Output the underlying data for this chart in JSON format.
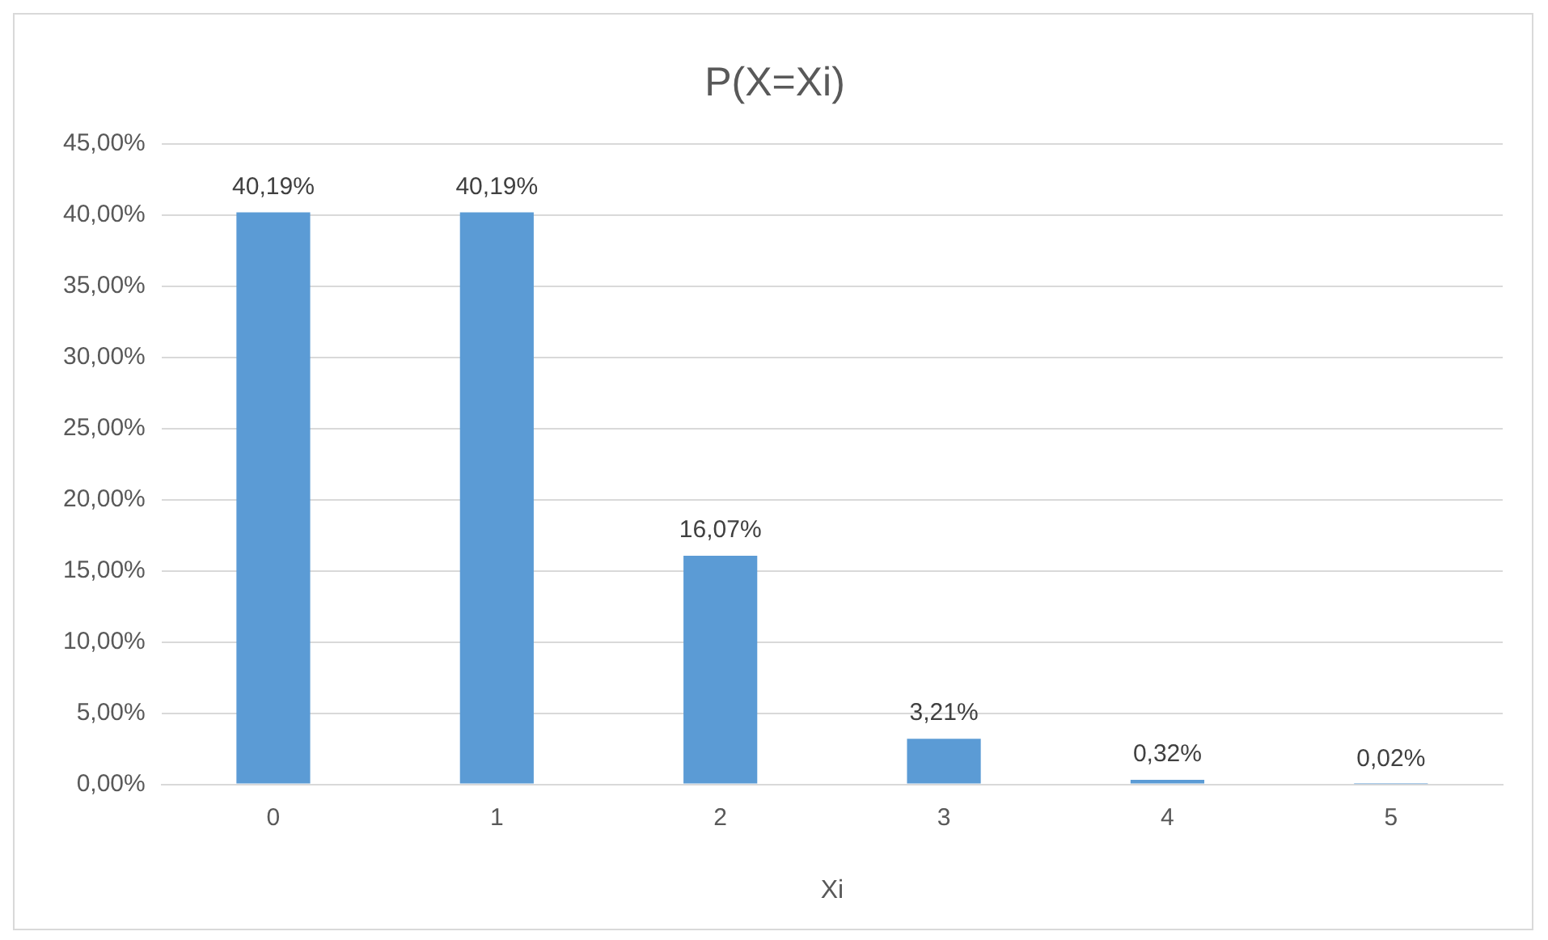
{
  "chart_data": {
    "type": "bar",
    "title": "P(X=Xi)",
    "xlabel": "Xi",
    "categories": [
      "0",
      "1",
      "2",
      "3",
      "4",
      "5"
    ],
    "values": [
      40.19,
      40.19,
      16.07,
      3.21,
      0.32,
      0.02
    ],
    "value_labels": [
      "40,19%",
      "40,19%",
      "16,07%",
      "3,21%",
      "0,32%",
      "0,02%"
    ],
    "color": "#5b9bd5",
    "ylim": [
      0,
      45
    ],
    "yticks": [
      {
        "value": 0,
        "label": "0,00%"
      },
      {
        "value": 5,
        "label": "5,00%"
      },
      {
        "value": 10,
        "label": "10,00%"
      },
      {
        "value": 15,
        "label": "15,00%"
      },
      {
        "value": 20,
        "label": "20,00%"
      },
      {
        "value": 25,
        "label": "25,00%"
      },
      {
        "value": 30,
        "label": "30,00%"
      },
      {
        "value": 35,
        "label": "35,00%"
      },
      {
        "value": 40,
        "label": "40,00%"
      },
      {
        "value": 45,
        "label": "45,00%"
      }
    ],
    "grid": "y",
    "legend": false
  }
}
